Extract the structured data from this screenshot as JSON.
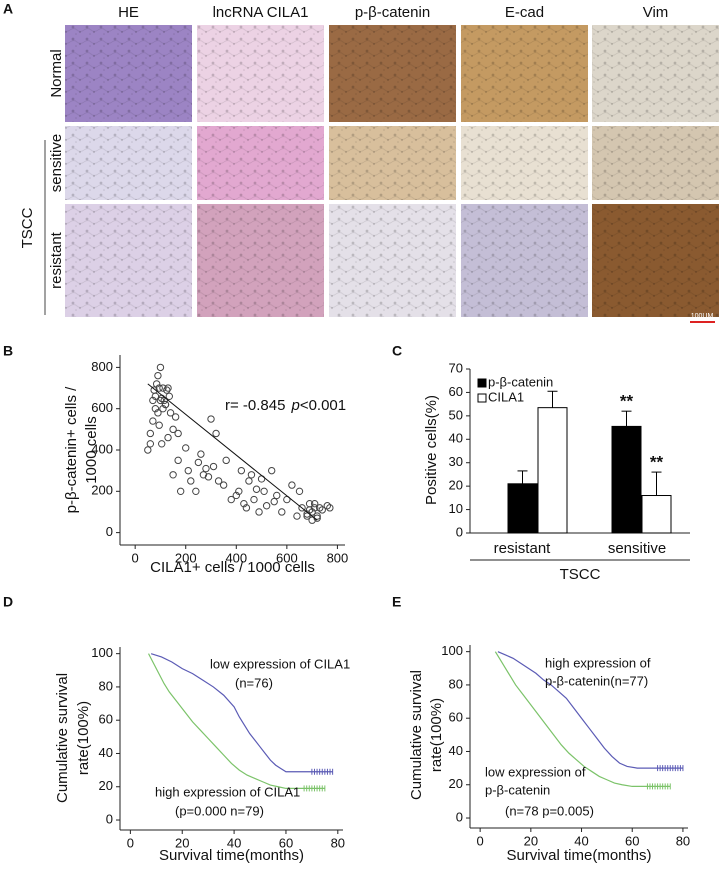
{
  "panel_letters": [
    "A",
    "B",
    "C",
    "D",
    "E"
  ],
  "panel_a": {
    "columns": [
      "HE",
      "lncRNA  CILA1",
      "p-β-catenin",
      "E-cad",
      "Vim"
    ],
    "rows": [
      "Normal",
      "sensitive",
      "resistant"
    ],
    "group": "TSCC",
    "scale_bar": "100UM"
  },
  "chart_data": [
    {
      "type": "scatter",
      "xlabel": "CILA1+ cells / 1000 cells",
      "ylabel": [
        "p-β-catenin+ cells /",
        "1000 cells"
      ],
      "annotation": [
        "r= -0.845",
        "p",
        "<0.001"
      ],
      "marker_color": "#444444",
      "x": [
        50,
        60,
        70,
        75,
        80,
        85,
        90,
        95,
        100,
        105,
        110,
        115,
        120,
        125,
        130,
        135,
        140,
        150,
        160,
        170,
        80,
        90,
        100,
        110,
        120,
        70,
        60,
        95,
        105,
        130,
        150,
        170,
        180,
        200,
        210,
        220,
        240,
        250,
        260,
        270,
        280,
        290,
        300,
        310,
        320,
        330,
        350,
        360,
        380,
        400,
        410,
        420,
        430,
        440,
        450,
        460,
        470,
        480,
        490,
        500,
        510,
        520,
        540,
        550,
        560,
        580,
        600,
        620,
        640,
        650,
        660,
        680,
        690,
        700,
        700,
        710,
        720,
        730,
        740,
        760,
        770,
        680,
        690,
        710,
        720
      ],
      "values": [
        400,
        430,
        640,
        690,
        600,
        720,
        760,
        700,
        800,
        650,
        600,
        640,
        620,
        690,
        700,
        660,
        580,
        500,
        560,
        480,
        660,
        580,
        640,
        700,
        620,
        540,
        480,
        520,
        430,
        460,
        280,
        350,
        200,
        410,
        300,
        250,
        200,
        340,
        380,
        280,
        310,
        270,
        550,
        320,
        480,
        250,
        230,
        350,
        160,
        180,
        200,
        300,
        140,
        120,
        250,
        280,
        160,
        210,
        100,
        260,
        200,
        130,
        300,
        150,
        180,
        100,
        160,
        230,
        80,
        200,
        120,
        80,
        140,
        100,
        60,
        120,
        70,
        120,
        110,
        130,
        120,
        90,
        110,
        140,
        80
      ],
      "fit": {
        "x": [
          50,
          720
        ],
        "values": [
          720,
          60
        ]
      },
      "xlim": [
        -60,
        830
      ],
      "ylim": [
        -60,
        860
      ],
      "xticks": [
        0,
        200,
        400,
        600,
        800
      ],
      "yticks": [
        0,
        200,
        400,
        600,
        800
      ]
    },
    {
      "type": "bar",
      "ylabel": "Positive cells(%)",
      "categories": [
        "resistant",
        "sensitive"
      ],
      "group_label": "TSCC",
      "series": [
        {
          "name": "p-β-catenin",
          "color": "#000000",
          "values": [
            21,
            45.5
          ],
          "errors": [
            5.5,
            6.5
          ],
          "annotations": [
            null,
            "**"
          ]
        },
        {
          "name": "CILA1",
          "color": "#ffffff",
          "values": [
            53.5,
            16
          ],
          "errors": [
            7,
            10
          ],
          "annotations": [
            null,
            "**"
          ]
        }
      ],
      "ylim": [
        0,
        70
      ],
      "yticks": [
        0,
        10,
        20,
        30,
        40,
        50,
        60,
        70
      ]
    },
    {
      "type": "survival",
      "xlabel": "Survival time(months)",
      "ylabel": [
        "Cumulative survival",
        "rate(100%)"
      ],
      "xlim": [
        -4,
        82
      ],
      "ylim": [
        -6,
        104
      ],
      "xticks": [
        0,
        20,
        40,
        60,
        80
      ],
      "yticks": [
        0,
        20,
        40,
        60,
        80,
        100
      ],
      "series": [
        {
          "label": [
            "low expression of CILA1",
            "(n=76)"
          ],
          "color": "#5b5bb5",
          "x": [
            8,
            12,
            16,
            20,
            24,
            28,
            32,
            36,
            40,
            42,
            44,
            46,
            48,
            50,
            52,
            54,
            56,
            58,
            60,
            78
          ],
          "values": [
            100,
            98,
            95,
            91,
            88,
            84,
            80,
            75,
            68,
            62,
            57,
            52,
            48,
            44,
            40,
            36,
            33,
            31,
            29,
            29
          ],
          "censored_x": [
            70,
            71,
            72,
            73,
            74,
            75,
            76,
            77,
            78
          ]
        },
        {
          "label": [
            "high expression of CILA1",
            "(p=0.000 n=79)"
          ],
          "color": "#7cc36a",
          "x": [
            7,
            9,
            11,
            13,
            15,
            18,
            21,
            24,
            27,
            30,
            33,
            36,
            39,
            42,
            45,
            48,
            51,
            54,
            57,
            60,
            75
          ],
          "values": [
            100,
            94,
            88,
            82,
            77,
            71,
            65,
            59,
            54,
            49,
            44,
            39,
            34,
            30,
            27,
            25,
            23,
            21,
            20,
            19,
            19
          ],
          "censored_x": [
            67,
            68,
            69,
            70,
            71,
            72,
            73,
            74,
            75
          ]
        }
      ]
    },
    {
      "type": "survival",
      "xlabel": "Survival time(months)",
      "ylabel": [
        "Cumulative survival",
        "rate(100%)"
      ],
      "xlim": [
        -4,
        82
      ],
      "ylim": [
        -6,
        104
      ],
      "xticks": [
        0,
        20,
        40,
        60,
        80
      ],
      "yticks": [
        0,
        20,
        40,
        60,
        80,
        100
      ],
      "series": [
        {
          "label": [
            "high expression of",
            "p-β-catenin(n=77)"
          ],
          "color": "#5b5bb5",
          "x": [
            7,
            10,
            13,
            16,
            19,
            22,
            25,
            28,
            31,
            34,
            37,
            40,
            43,
            46,
            49,
            52,
            55,
            58,
            62,
            80
          ],
          "values": [
            100,
            98,
            96,
            93,
            90,
            87,
            83,
            80,
            76,
            72,
            66,
            60,
            54,
            48,
            42,
            37,
            33,
            31,
            30,
            30
          ],
          "censored_x": [
            70,
            71,
            72,
            73,
            74,
            75,
            76,
            77,
            78,
            79,
            80
          ]
        },
        {
          "label": [
            "low expression of",
            "p-β-catenin",
            "(n=78 p=0.005)"
          ],
          "color": "#7cc36a",
          "x": [
            6,
            8,
            10,
            12,
            14,
            17,
            20,
            23,
            26,
            29,
            32,
            35,
            38,
            41,
            44,
            47,
            50,
            53,
            56,
            60,
            75
          ],
          "values": [
            100,
            95,
            90,
            85,
            80,
            74,
            68,
            62,
            56,
            50,
            44,
            39,
            35,
            31,
            28,
            25,
            23,
            21,
            20,
            19,
            19
          ],
          "censored_x": [
            66,
            67,
            68,
            69,
            70,
            71,
            72,
            73,
            74,
            75
          ]
        }
      ]
    }
  ]
}
